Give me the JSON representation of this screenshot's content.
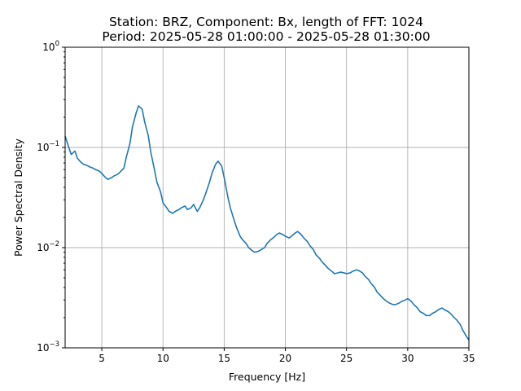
{
  "chart_data": {
    "type": "line",
    "title_line1": "Station: BRZ, Component: Bx, length of FFT: 1024",
    "title_line2": "Period: 2025-05-28 01:00:00 - 2025-05-28 01:30:00",
    "xlabel": "Frequency [Hz]",
    "ylabel": "Power Spectral Density",
    "xlim": [
      2,
      35
    ],
    "ylim": [
      0.001,
      1
    ],
    "yscale": "log",
    "grid": true,
    "x_ticks": [
      {
        "value": 5,
        "label": "5"
      },
      {
        "value": 10,
        "label": "10"
      },
      {
        "value": 15,
        "label": "15"
      },
      {
        "value": 20,
        "label": "20"
      },
      {
        "value": 25,
        "label": "25"
      },
      {
        "value": 30,
        "label": "30"
      },
      {
        "value": 35,
        "label": "35"
      }
    ],
    "y_ticks": [
      {
        "value": 0.001,
        "base": "10",
        "exp": "−3"
      },
      {
        "value": 0.01,
        "base": "10",
        "exp": "−2"
      },
      {
        "value": 0.1,
        "base": "10",
        "exp": "−1"
      },
      {
        "value": 1,
        "base": "10",
        "exp": "0"
      }
    ],
    "series": [
      {
        "color": "#1f77b4",
        "x": [
          2.0,
          2.3,
          2.5,
          2.8,
          3.0,
          3.3,
          3.5,
          3.8,
          4.0,
          4.3,
          4.5,
          4.8,
          5.0,
          5.3,
          5.5,
          5.8,
          6.0,
          6.3,
          6.5,
          6.8,
          7.0,
          7.3,
          7.5,
          7.8,
          8.0,
          8.3,
          8.5,
          8.8,
          9.0,
          9.3,
          9.5,
          9.8,
          10.0,
          10.3,
          10.5,
          10.8,
          11.0,
          11.3,
          11.5,
          11.8,
          12.0,
          12.3,
          12.5,
          12.8,
          13.0,
          13.3,
          13.5,
          13.8,
          14.0,
          14.3,
          14.5,
          14.8,
          15.0,
          15.3,
          15.5,
          15.8,
          16.0,
          16.3,
          16.5,
          16.8,
          17.0,
          17.3,
          17.5,
          17.8,
          18.0,
          18.3,
          18.5,
          18.8,
          19.0,
          19.3,
          19.5,
          19.8,
          20.0,
          20.3,
          20.5,
          20.8,
          21.0,
          21.3,
          21.5,
          21.8,
          22.0,
          22.3,
          22.5,
          22.8,
          23.0,
          23.3,
          23.5,
          23.8,
          24.0,
          24.3,
          24.5,
          24.8,
          25.0,
          25.3,
          25.5,
          25.8,
          26.0,
          26.3,
          26.5,
          26.8,
          27.0,
          27.3,
          27.5,
          27.8,
          28.0,
          28.3,
          28.5,
          28.8,
          29.0,
          29.3,
          29.5,
          29.8,
          30.0,
          30.3,
          30.5,
          30.8,
          31.0,
          31.3,
          31.5,
          31.8,
          32.0,
          32.3,
          32.5,
          32.8,
          33.0,
          33.3,
          33.5,
          33.8,
          34.0,
          34.3,
          34.5,
          34.8,
          35.0
        ],
        "y": [
          0.13,
          0.1,
          0.085,
          0.092,
          0.078,
          0.071,
          0.068,
          0.066,
          0.064,
          0.062,
          0.06,
          0.058,
          0.055,
          0.05,
          0.048,
          0.05,
          0.052,
          0.054,
          0.057,
          0.062,
          0.08,
          0.11,
          0.16,
          0.22,
          0.26,
          0.24,
          0.18,
          0.13,
          0.09,
          0.06,
          0.045,
          0.036,
          0.028,
          0.025,
          0.023,
          0.022,
          0.023,
          0.024,
          0.025,
          0.026,
          0.024,
          0.025,
          0.027,
          0.023,
          0.025,
          0.03,
          0.035,
          0.045,
          0.055,
          0.068,
          0.073,
          0.065,
          0.05,
          0.032,
          0.025,
          0.019,
          0.016,
          0.013,
          0.012,
          0.011,
          0.01,
          0.0093,
          0.009,
          0.0092,
          0.0095,
          0.01,
          0.011,
          0.012,
          0.0125,
          0.0135,
          0.014,
          0.0135,
          0.013,
          0.0125,
          0.013,
          0.014,
          0.0145,
          0.0135,
          0.0125,
          0.0115,
          0.0105,
          0.0095,
          0.0085,
          0.0078,
          0.0072,
          0.0066,
          0.0062,
          0.0058,
          0.0055,
          0.0056,
          0.0057,
          0.0056,
          0.0055,
          0.0056,
          0.0058,
          0.006,
          0.0059,
          0.0056,
          0.0052,
          0.0048,
          0.0044,
          0.004,
          0.0036,
          0.0033,
          0.0031,
          0.0029,
          0.0028,
          0.0027,
          0.0027,
          0.0028,
          0.0029,
          0.003,
          0.0031,
          0.0029,
          0.0027,
          0.0025,
          0.0023,
          0.0022,
          0.0021,
          0.0021,
          0.0022,
          0.0023,
          0.0024,
          0.0025,
          0.0024,
          0.0023,
          0.0022,
          0.002,
          0.0019,
          0.0017,
          0.0015,
          0.0013,
          0.0012
        ]
      }
    ]
  }
}
